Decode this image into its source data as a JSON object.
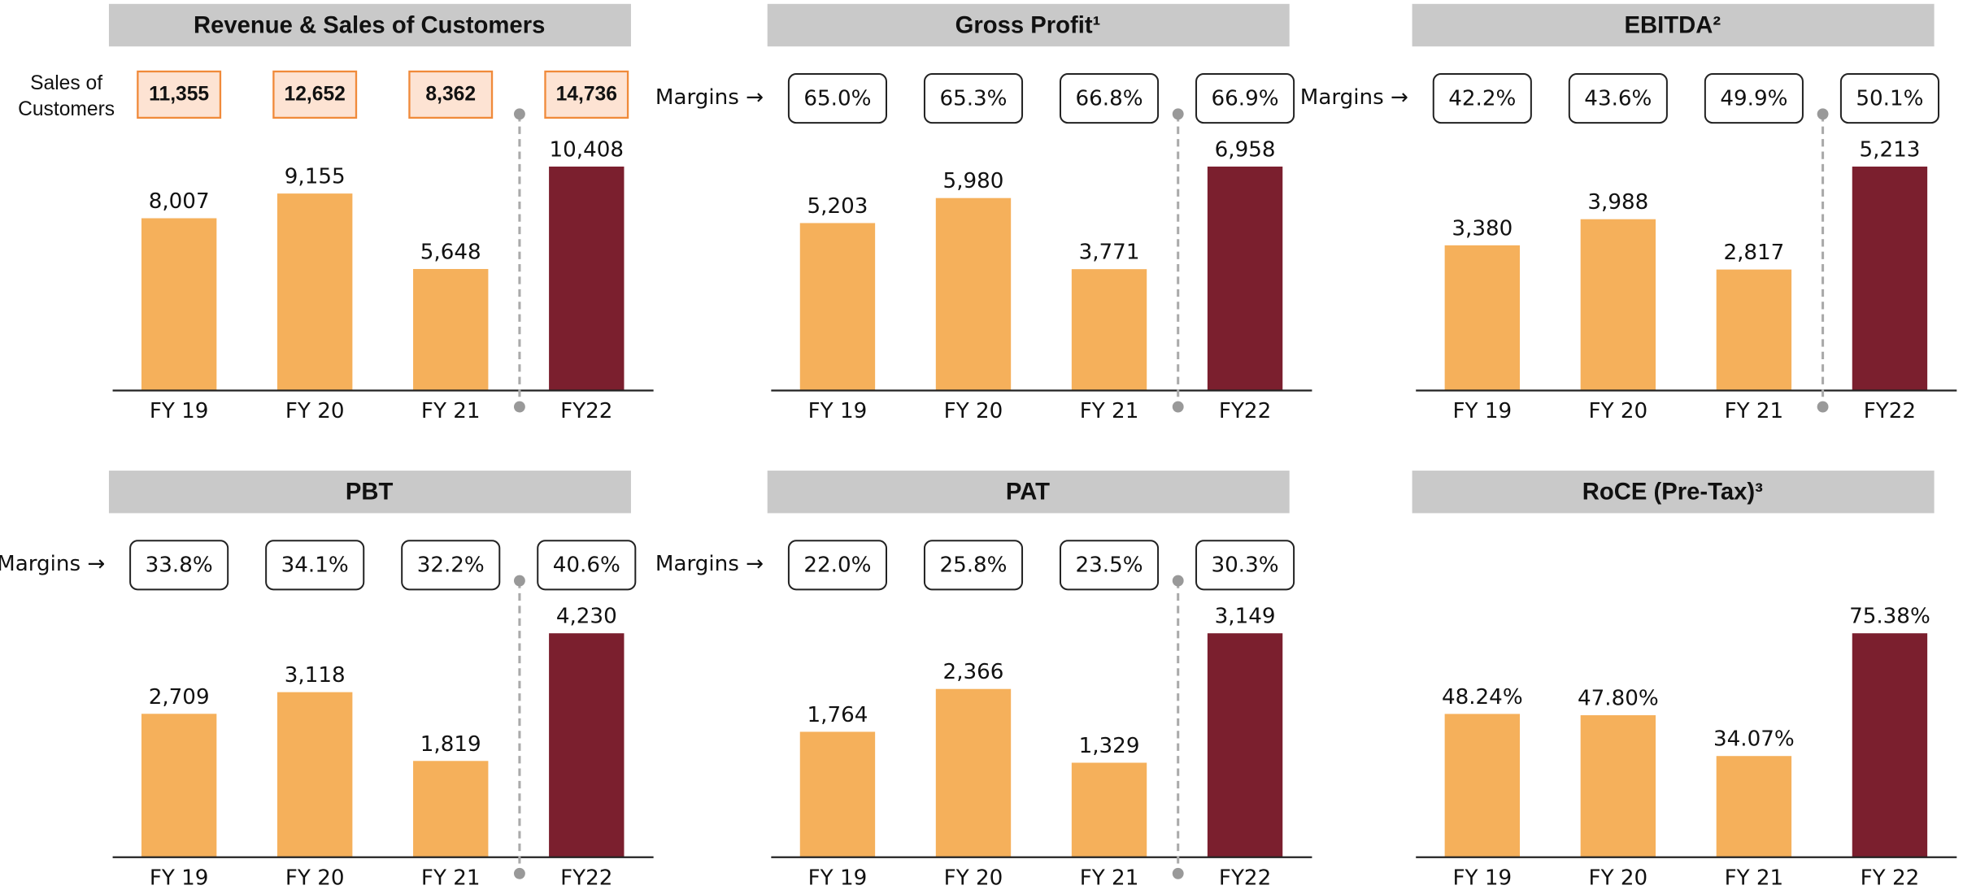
{
  "chart_data": [
    {
      "type": "bar",
      "title": "Revenue & Sales of Customers",
      "categories": [
        "FY 19",
        "FY 20",
        "FY 21",
        "FY22"
      ],
      "values": [
        8007,
        9155,
        5648,
        10408
      ],
      "value_labels": [
        "8,007",
        "9,155",
        "5,648",
        "10,408"
      ],
      "colors": [
        "#F5B05B",
        "#F5B05B",
        "#F5B05B",
        "#7B1F2E"
      ],
      "sales_label": [
        "Sales of",
        "Customers"
      ],
      "sales_labels": [
        "11,355",
        "12,652",
        "8,362",
        "14,736"
      ],
      "divider": true
    },
    {
      "type": "bar",
      "title": "Gross Profit¹",
      "categories": [
        "FY 19",
        "FY 20",
        "FY 21",
        "FY22"
      ],
      "values": [
        5203,
        5980,
        3771,
        6958
      ],
      "value_labels": [
        "5,203",
        "5,980",
        "3,771",
        "6,958"
      ],
      "colors": [
        "#F5B05B",
        "#F5B05B",
        "#F5B05B",
        "#7B1F2E"
      ],
      "margin_label": "Margins →",
      "margin_labels": [
        "65.0%",
        "65.3%",
        "66.8%",
        "66.9%"
      ],
      "divider": true
    },
    {
      "type": "bar",
      "title": "EBITDA²",
      "categories": [
        "FY 19",
        "FY 20",
        "FY 21",
        "FY22"
      ],
      "values": [
        3380,
        3988,
        2817,
        5213
      ],
      "value_labels": [
        "3,380",
        "3,988",
        "2,817",
        "5,213"
      ],
      "colors": [
        "#F5B05B",
        "#F5B05B",
        "#F5B05B",
        "#7B1F2E"
      ],
      "margin_label": "Margins →",
      "margin_labels": [
        "42.2%",
        "43.6%",
        "49.9%",
        "50.1%"
      ],
      "divider": true
    },
    {
      "type": "bar",
      "title": "PBT",
      "categories": [
        "FY 19",
        "FY 20",
        "FY 21",
        "FY22"
      ],
      "values": [
        2709,
        3118,
        1819,
        4230
      ],
      "value_labels": [
        "2,709",
        "3,118",
        "1,819",
        "4,230"
      ],
      "colors": [
        "#F5B05B",
        "#F5B05B",
        "#F5B05B",
        "#7B1F2E"
      ],
      "margin_label": "Margins →",
      "margin_labels": [
        "33.8%",
        "34.1%",
        "32.2%",
        "40.6%"
      ],
      "divider": true
    },
    {
      "type": "bar",
      "title": "PAT",
      "categories": [
        "FY 19",
        "FY 20",
        "FY 21",
        "FY22"
      ],
      "values": [
        1764,
        2366,
        1329,
        3149
      ],
      "value_labels": [
        "1,764",
        "2,366",
        "1,329",
        "3,149"
      ],
      "colors": [
        "#F5B05B",
        "#F5B05B",
        "#F5B05B",
        "#7B1F2E"
      ],
      "margin_label": "Margins →",
      "margin_labels": [
        "22.0%",
        "25.8%",
        "23.5%",
        "30.3%"
      ],
      "divider": true
    },
    {
      "type": "bar",
      "title": "RoCE (Pre-Tax)³",
      "categories": [
        "FY 19",
        "FY 20",
        "FY 21",
        "FY 22"
      ],
      "values": [
        48.24,
        47.8,
        34.07,
        75.38
      ],
      "value_labels": [
        "48.24%",
        "47.80%",
        "34.07%",
        "75.38%"
      ],
      "colors": [
        "#F5B05B",
        "#F5B05B",
        "#F5B05B",
        "#7B1F2E"
      ],
      "divider": false
    }
  ]
}
